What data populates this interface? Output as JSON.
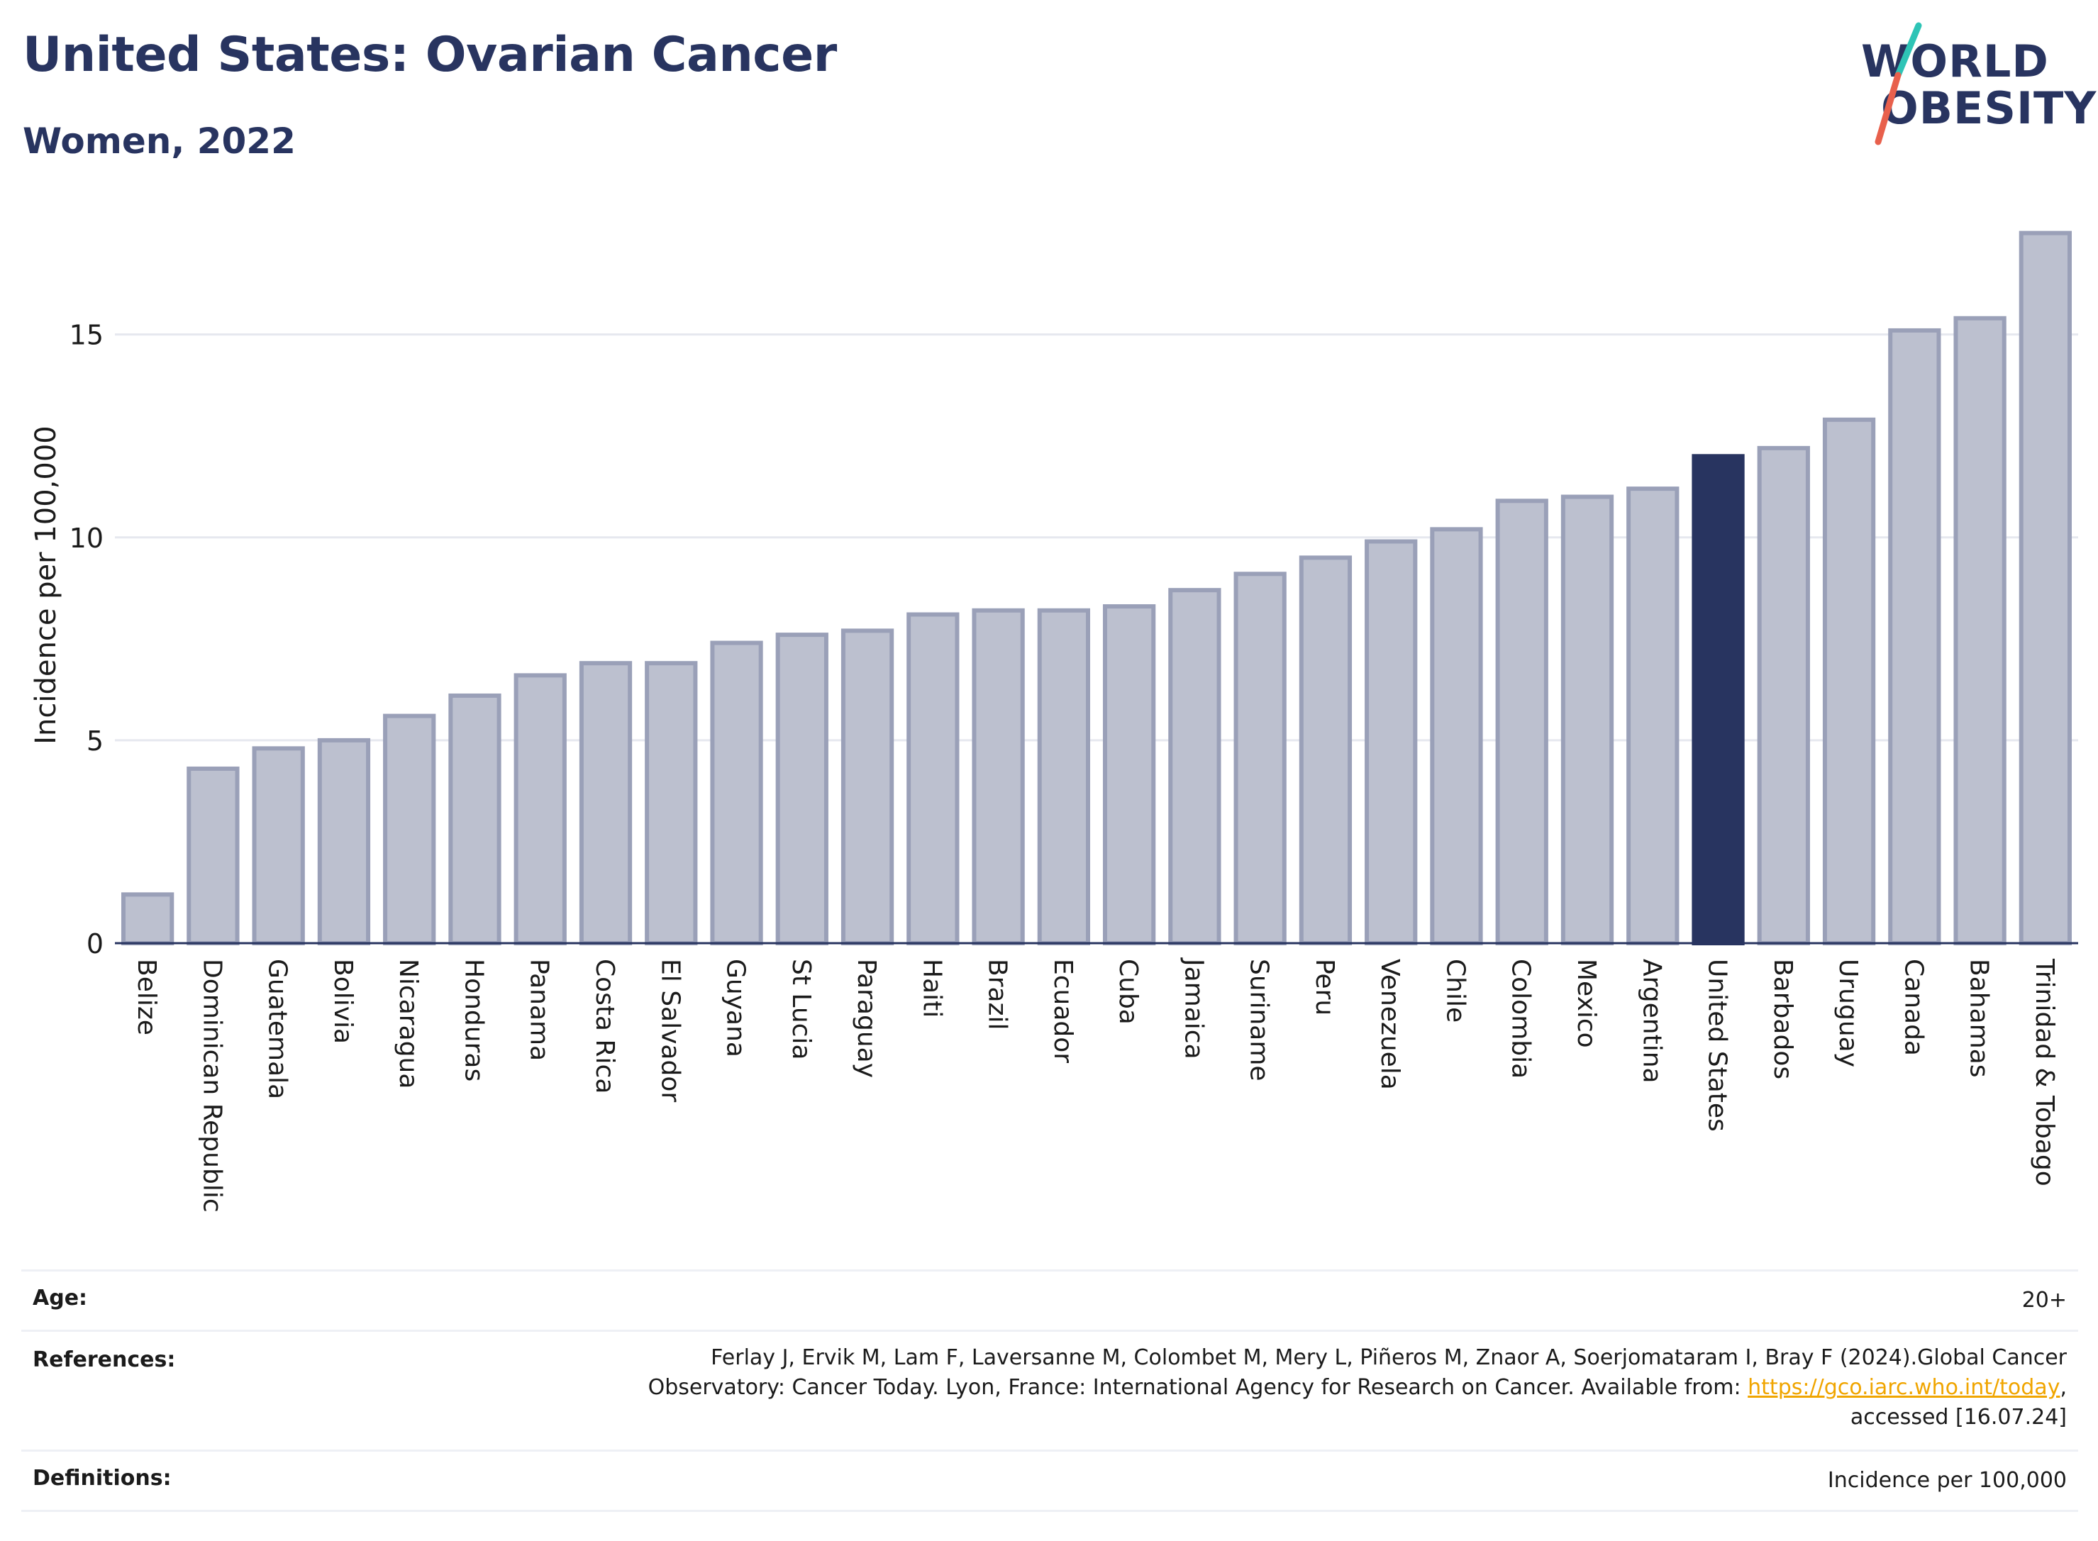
{
  "header": {
    "title": "United States: Ovarian Cancer",
    "subtitle": "Women, 2022"
  },
  "logo": {
    "line1": "WORLD",
    "line2": "OBESITY",
    "colors": {
      "text": "#283460",
      "slash_top": "#2ec4b6",
      "slash_bottom": "#e8604c"
    }
  },
  "colors": {
    "bar_default": "#bcc0cf",
    "bar_default_stroke": "#9aa0b8",
    "bar_highlight": "#283460",
    "grid": "#e6e8ef",
    "axis": "#283460",
    "link": "#f0a500"
  },
  "chart_data": {
    "type": "bar",
    "title": "United States: Ovarian Cancer",
    "subtitle": "Women, 2022",
    "xlabel": "",
    "ylabel": "Incidence per 100,000",
    "ylim": [
      0,
      18
    ],
    "yticks": [
      0,
      5,
      10,
      15
    ],
    "grid": true,
    "highlight": "United States",
    "categories": [
      "Belize",
      "Dominican Republic",
      "Guatemala",
      "Bolivia",
      "Nicaragua",
      "Honduras",
      "Panama",
      "Costa Rica",
      "El Salvador",
      "Guyana",
      "St Lucia",
      "Paraguay",
      "Haiti",
      "Brazil",
      "Ecuador",
      "Cuba",
      "Jamaica",
      "Suriname",
      "Peru",
      "Venezuela",
      "Chile",
      "Colombia",
      "Mexico",
      "Argentina",
      "United States",
      "Barbados",
      "Uruguay",
      "Canada",
      "Bahamas",
      "Trinidad & Tobago"
    ],
    "values": [
      1.2,
      4.3,
      4.8,
      5.0,
      5.6,
      6.1,
      6.6,
      6.9,
      6.9,
      7.4,
      7.6,
      7.7,
      8.1,
      8.2,
      8.2,
      8.3,
      8.7,
      9.1,
      9.5,
      9.9,
      10.2,
      10.9,
      11.0,
      11.2,
      12.0,
      12.2,
      12.9,
      15.1,
      15.4,
      17.5
    ]
  },
  "footer": {
    "age_label": "Age:",
    "age_value": "20+",
    "references_label": "References:",
    "references_line1": "Ferlay J, Ervik M, Lam F, Laversanne M, Colombet M, Mery L, Piñeros M, Znaor A, Soerjomataram I, Bray F (2024).Global Cancer",
    "references_line2_pre": "Observatory: Cancer Today. Lyon, France: International Agency for Research on Cancer. Available from: ",
    "references_link": "https://gco.iarc.who.int/today",
    "references_line2_post": ",",
    "references_line3": "accessed [16.07.24]",
    "definitions_label": "Definitions:",
    "definitions_value": "Incidence per 100,000"
  }
}
